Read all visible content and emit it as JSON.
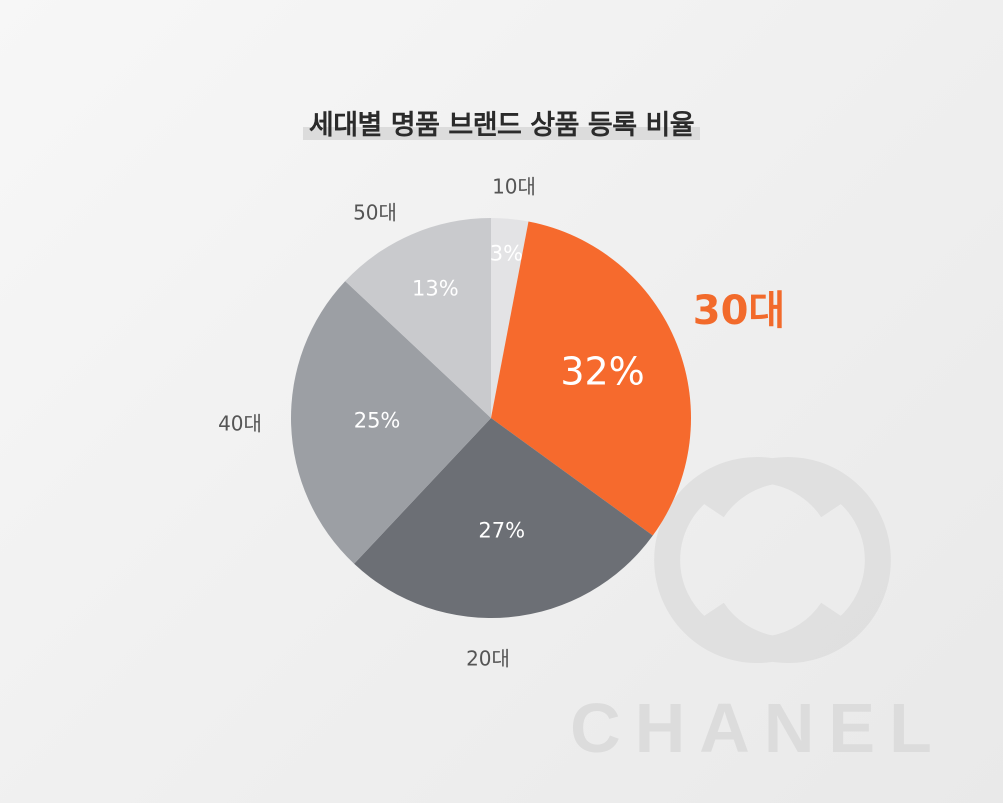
{
  "chart_data": {
    "type": "pie",
    "title": "세대별 명품 브랜드 상품 등록 비율",
    "slices": [
      {
        "label": "10대",
        "value": 3,
        "display": "3%",
        "color": "#e3e3e5"
      },
      {
        "label": "30대",
        "value": 32,
        "display": "32%",
        "color": "#f66a2d",
        "highlight": true
      },
      {
        "label": "20대",
        "value": 27,
        "display": "27%",
        "color": "#6c6f75"
      },
      {
        "label": "40대",
        "value": 25,
        "display": "25%",
        "color": "#9c9fa4"
      },
      {
        "label": "50대",
        "value": 13,
        "display": "13%",
        "color": "#c9cacd"
      }
    ],
    "start": "12 o'clock",
    "direction": "clockwise"
  },
  "watermark": {
    "text": "CHANEL",
    "kind": "logo"
  }
}
